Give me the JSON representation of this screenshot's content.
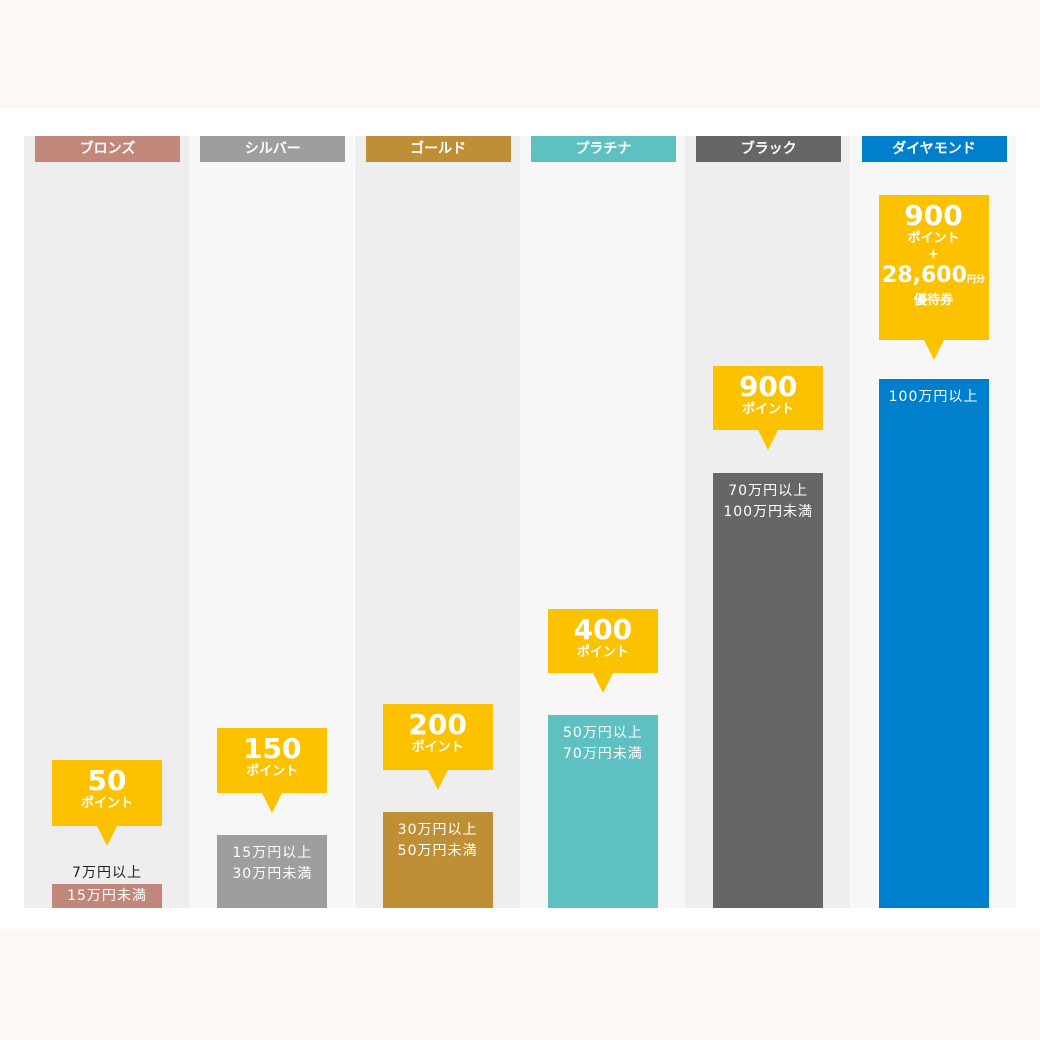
{
  "tiers": [
    {
      "name": "ブロンズ",
      "points": "50",
      "unit": "ポイント",
      "range": [
        "7万円以上",
        "15万円未満"
      ]
    },
    {
      "name": "シルバー",
      "points": "150",
      "unit": "ポイント",
      "range": [
        "15万円以上",
        "30万円未満"
      ]
    },
    {
      "name": "ゴールド",
      "points": "200",
      "unit": "ポイント",
      "range": [
        "30万円以上",
        "50万円未満"
      ]
    },
    {
      "name": "プラチナ",
      "points": "400",
      "unit": "ポイント",
      "range": [
        "50万円以上",
        "70万円未満"
      ]
    },
    {
      "name": "ブラック",
      "points": "900",
      "unit": "ポイント",
      "range": [
        "70万円以上",
        "100万円未満"
      ]
    },
    {
      "name": "ダイヤモンド",
      "points": "900",
      "unit": "ポイント",
      "range": [
        "100万円以上"
      ],
      "extra": {
        "plus": "+",
        "amount": "28,600",
        "amount_unit": "円分",
        "label": "優待券"
      }
    }
  ]
}
